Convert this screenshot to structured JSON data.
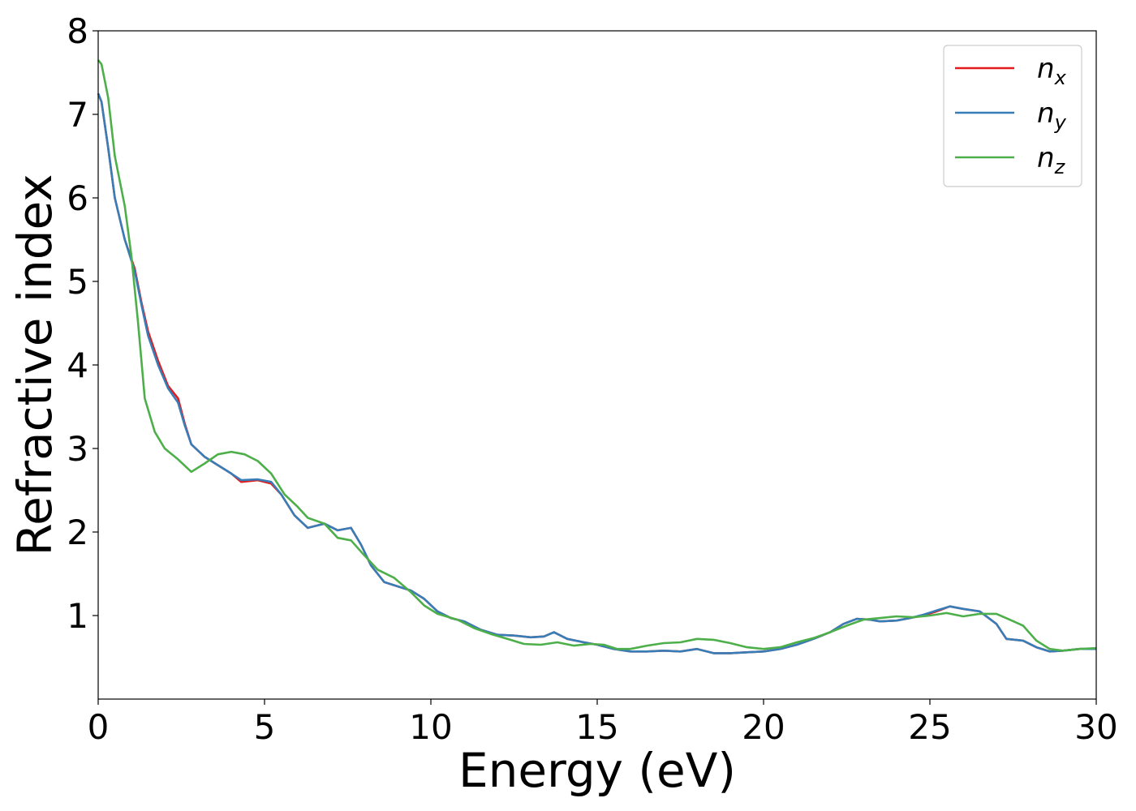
{
  "chart_data": {
    "type": "line",
    "title": "",
    "xlabel": "Energy (eV)",
    "ylabel": "Refractive index",
    "xlim": [
      0,
      30
    ],
    "ylim": [
      0,
      8
    ],
    "xticks": [
      "0",
      "5",
      "10",
      "15",
      "20",
      "25",
      "30"
    ],
    "yticks": [
      "1",
      "2",
      "3",
      "4",
      "5",
      "6",
      "7",
      "8"
    ],
    "grid": false,
    "legend_position": "top-right",
    "series": [
      {
        "name": "n_x",
        "label_main": "n",
        "label_sub": "x",
        "color": "#e41a1c",
        "points": [
          [
            0,
            7.25
          ],
          [
            0.1,
            7.15
          ],
          [
            0.3,
            6.6
          ],
          [
            0.5,
            6.0
          ],
          [
            0.8,
            5.5
          ],
          [
            1.1,
            5.15
          ],
          [
            1.3,
            4.75
          ],
          [
            1.5,
            4.4
          ],
          [
            1.8,
            4.05
          ],
          [
            2.1,
            3.75
          ],
          [
            2.4,
            3.6
          ],
          [
            2.6,
            3.3
          ],
          [
            2.8,
            3.05
          ],
          [
            3.2,
            2.9
          ],
          [
            3.6,
            2.8
          ],
          [
            4.0,
            2.7
          ],
          [
            4.3,
            2.6
          ],
          [
            4.8,
            2.62
          ],
          [
            5.2,
            2.58
          ],
          [
            5.5,
            2.45
          ],
          [
            5.9,
            2.2
          ],
          [
            6.3,
            2.05
          ],
          [
            6.8,
            2.1
          ],
          [
            7.2,
            2.02
          ],
          [
            7.6,
            2.05
          ],
          [
            7.9,
            1.85
          ],
          [
            8.2,
            1.6
          ],
          [
            8.6,
            1.4
          ],
          [
            9.0,
            1.35
          ],
          [
            9.4,
            1.3
          ],
          [
            9.8,
            1.2
          ],
          [
            10.2,
            1.05
          ],
          [
            10.6,
            0.97
          ],
          [
            11.0,
            0.93
          ],
          [
            11.5,
            0.83
          ],
          [
            12.0,
            0.77
          ],
          [
            12.5,
            0.76
          ],
          [
            13.0,
            0.74
          ],
          [
            13.4,
            0.75
          ],
          [
            13.7,
            0.8
          ],
          [
            14.1,
            0.72
          ],
          [
            14.6,
            0.68
          ],
          [
            15.0,
            0.65
          ],
          [
            15.5,
            0.6
          ],
          [
            16.0,
            0.57
          ],
          [
            16.5,
            0.57
          ],
          [
            17.0,
            0.58
          ],
          [
            17.5,
            0.57
          ],
          [
            18.0,
            0.6
          ],
          [
            18.5,
            0.55
          ],
          [
            19.0,
            0.55
          ],
          [
            19.5,
            0.56
          ],
          [
            20.0,
            0.57
          ],
          [
            20.5,
            0.6
          ],
          [
            21.0,
            0.65
          ],
          [
            21.5,
            0.72
          ],
          [
            22.0,
            0.8
          ],
          [
            22.4,
            0.9
          ],
          [
            22.8,
            0.96
          ],
          [
            23.2,
            0.95
          ],
          [
            23.5,
            0.93
          ],
          [
            24.0,
            0.94
          ],
          [
            24.4,
            0.97
          ],
          [
            24.8,
            1.0
          ],
          [
            25.2,
            1.05
          ],
          [
            25.6,
            1.11
          ],
          [
            26.0,
            1.08
          ],
          [
            26.5,
            1.05
          ],
          [
            27.0,
            0.9
          ],
          [
            27.3,
            0.72
          ],
          [
            27.8,
            0.7
          ],
          [
            28.2,
            0.62
          ],
          [
            28.6,
            0.57
          ],
          [
            29.0,
            0.58
          ],
          [
            29.5,
            0.6
          ],
          [
            30.0,
            0.6
          ]
        ]
      },
      {
        "name": "n_y",
        "label_main": "n",
        "label_sub": "y",
        "color": "#377eb8",
        "points": [
          [
            0,
            7.25
          ],
          [
            0.1,
            7.15
          ],
          [
            0.3,
            6.6
          ],
          [
            0.5,
            6.0
          ],
          [
            0.8,
            5.5
          ],
          [
            1.1,
            5.12
          ],
          [
            1.3,
            4.72
          ],
          [
            1.5,
            4.35
          ],
          [
            1.8,
            4.0
          ],
          [
            2.1,
            3.72
          ],
          [
            2.4,
            3.55
          ],
          [
            2.6,
            3.28
          ],
          [
            2.8,
            3.05
          ],
          [
            3.2,
            2.9
          ],
          [
            3.6,
            2.8
          ],
          [
            4.0,
            2.7
          ],
          [
            4.3,
            2.62
          ],
          [
            4.8,
            2.63
          ],
          [
            5.2,
            2.6
          ],
          [
            5.5,
            2.45
          ],
          [
            5.9,
            2.2
          ],
          [
            6.3,
            2.05
          ],
          [
            6.8,
            2.1
          ],
          [
            7.2,
            2.02
          ],
          [
            7.6,
            2.05
          ],
          [
            7.9,
            1.85
          ],
          [
            8.2,
            1.6
          ],
          [
            8.6,
            1.4
          ],
          [
            9.0,
            1.35
          ],
          [
            9.4,
            1.3
          ],
          [
            9.8,
            1.2
          ],
          [
            10.2,
            1.05
          ],
          [
            10.6,
            0.97
          ],
          [
            11.0,
            0.93
          ],
          [
            11.5,
            0.83
          ],
          [
            12.0,
            0.77
          ],
          [
            12.5,
            0.76
          ],
          [
            13.0,
            0.74
          ],
          [
            13.4,
            0.75
          ],
          [
            13.7,
            0.8
          ],
          [
            14.1,
            0.72
          ],
          [
            14.6,
            0.68
          ],
          [
            15.0,
            0.65
          ],
          [
            15.5,
            0.6
          ],
          [
            16.0,
            0.57
          ],
          [
            16.5,
            0.57
          ],
          [
            17.0,
            0.58
          ],
          [
            17.5,
            0.57
          ],
          [
            18.0,
            0.6
          ],
          [
            18.5,
            0.55
          ],
          [
            19.0,
            0.55
          ],
          [
            19.5,
            0.56
          ],
          [
            20.0,
            0.57
          ],
          [
            20.5,
            0.6
          ],
          [
            21.0,
            0.65
          ],
          [
            21.5,
            0.72
          ],
          [
            22.0,
            0.8
          ],
          [
            22.4,
            0.9
          ],
          [
            22.8,
            0.96
          ],
          [
            23.2,
            0.95
          ],
          [
            23.5,
            0.93
          ],
          [
            24.0,
            0.94
          ],
          [
            24.4,
            0.97
          ],
          [
            24.8,
            1.01
          ],
          [
            25.2,
            1.06
          ],
          [
            25.6,
            1.11
          ],
          [
            26.0,
            1.08
          ],
          [
            26.5,
            1.05
          ],
          [
            27.0,
            0.9
          ],
          [
            27.3,
            0.72
          ],
          [
            27.8,
            0.7
          ],
          [
            28.2,
            0.62
          ],
          [
            28.6,
            0.57
          ],
          [
            29.0,
            0.58
          ],
          [
            29.5,
            0.6
          ],
          [
            30.0,
            0.6
          ]
        ]
      },
      {
        "name": "n_z",
        "label_main": "n",
        "label_sub": "z",
        "color": "#4daf4a",
        "points": [
          [
            0,
            7.65
          ],
          [
            0.1,
            7.6
          ],
          [
            0.3,
            7.2
          ],
          [
            0.5,
            6.5
          ],
          [
            0.8,
            5.9
          ],
          [
            1.0,
            5.3
          ],
          [
            1.2,
            4.5
          ],
          [
            1.4,
            3.6
          ],
          [
            1.7,
            3.2
          ],
          [
            2.0,
            3.0
          ],
          [
            2.4,
            2.87
          ],
          [
            2.8,
            2.72
          ],
          [
            3.2,
            2.82
          ],
          [
            3.6,
            2.93
          ],
          [
            4.0,
            2.96
          ],
          [
            4.4,
            2.93
          ],
          [
            4.8,
            2.85
          ],
          [
            5.2,
            2.7
          ],
          [
            5.6,
            2.45
          ],
          [
            6.0,
            2.3
          ],
          [
            6.3,
            2.17
          ],
          [
            6.8,
            2.1
          ],
          [
            7.2,
            1.93
          ],
          [
            7.6,
            1.9
          ],
          [
            8.0,
            1.72
          ],
          [
            8.4,
            1.55
          ],
          [
            8.9,
            1.45
          ],
          [
            9.4,
            1.28
          ],
          [
            9.8,
            1.12
          ],
          [
            10.2,
            1.02
          ],
          [
            10.8,
            0.95
          ],
          [
            11.3,
            0.85
          ],
          [
            11.8,
            0.78
          ],
          [
            12.3,
            0.72
          ],
          [
            12.8,
            0.66
          ],
          [
            13.3,
            0.65
          ],
          [
            13.8,
            0.68
          ],
          [
            14.3,
            0.64
          ],
          [
            14.8,
            0.66
          ],
          [
            15.2,
            0.65
          ],
          [
            15.6,
            0.6
          ],
          [
            16.0,
            0.6
          ],
          [
            16.5,
            0.64
          ],
          [
            17.0,
            0.67
          ],
          [
            17.5,
            0.68
          ],
          [
            18.0,
            0.72
          ],
          [
            18.5,
            0.71
          ],
          [
            19.0,
            0.67
          ],
          [
            19.5,
            0.62
          ],
          [
            20.0,
            0.6
          ],
          [
            20.5,
            0.62
          ],
          [
            21.0,
            0.68
          ],
          [
            21.5,
            0.73
          ],
          [
            22.0,
            0.8
          ],
          [
            22.5,
            0.88
          ],
          [
            23.0,
            0.95
          ],
          [
            23.5,
            0.97
          ],
          [
            24.0,
            0.99
          ],
          [
            24.5,
            0.98
          ],
          [
            25.0,
            1.0
          ],
          [
            25.5,
            1.03
          ],
          [
            26.0,
            0.99
          ],
          [
            26.5,
            1.02
          ],
          [
            27.0,
            1.02
          ],
          [
            27.4,
            0.95
          ],
          [
            27.8,
            0.88
          ],
          [
            28.2,
            0.7
          ],
          [
            28.6,
            0.6
          ],
          [
            29.0,
            0.58
          ],
          [
            29.5,
            0.6
          ],
          [
            30.0,
            0.61
          ]
        ]
      }
    ]
  }
}
